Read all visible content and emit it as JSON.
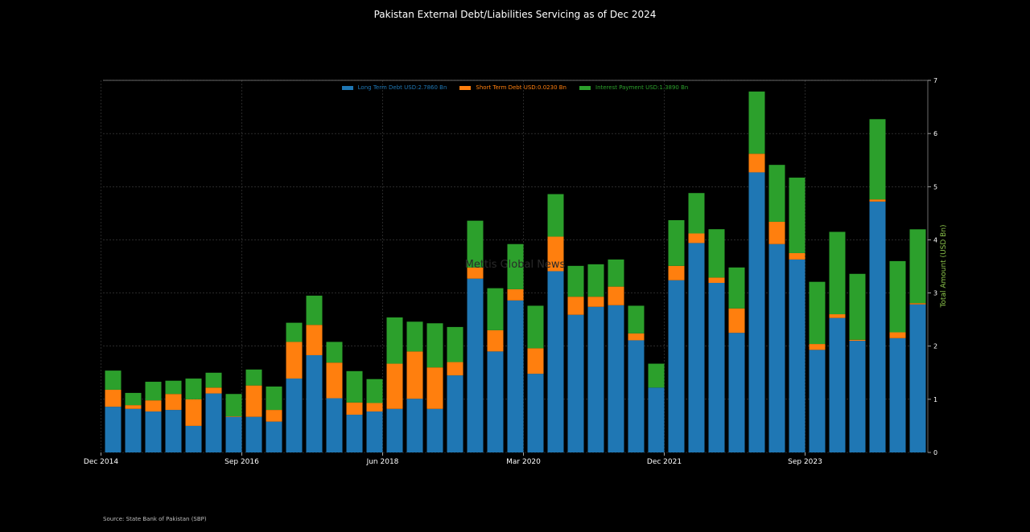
{
  "chart_data": {
    "type": "bar",
    "stacked": true,
    "title": "Pakistan External Debt/Liabilities Servicing as of Dec 2024",
    "ylabel": "Total Amount (USD Bn)",
    "source": "Source: State Bank of Pakistan (SBP)",
    "watermark": "Mettis Global News",
    "ylim": [
      0,
      7
    ],
    "yticks": [
      0,
      1,
      2,
      3,
      4,
      5,
      6,
      7
    ],
    "y_axis_side": "right",
    "grid": true,
    "legend_position": "top-center",
    "x_tick_labels": [
      {
        "label": "Dec 2014",
        "index": 0
      },
      {
        "label": "Sep 2016",
        "index": 7
      },
      {
        "label": "Jun 2018",
        "index": 14
      },
      {
        "label": "Mar 2020",
        "index": 21
      },
      {
        "label": "Dec 2021",
        "index": 28
      },
      {
        "label": "Sep 2023",
        "index": 35
      }
    ],
    "categories": [
      "Dec 2014",
      "Mar 2015",
      "Jun 2015",
      "Sep 2015",
      "Dec 2015",
      "Mar 2016",
      "Jun 2016",
      "Sep 2016",
      "Dec 2016",
      "Mar 2017",
      "Jun 2017",
      "Sep 2017",
      "Dec 2017",
      "Mar 2018",
      "Jun 2018",
      "Sep 2018",
      "Dec 2018",
      "Mar 2019",
      "Jun 2019",
      "Sep 2019",
      "Dec 2019",
      "Mar 2020",
      "Jun 2020",
      "Sep 2020",
      "Dec 2020",
      "Mar 2021",
      "Jun 2021",
      "Sep 2021",
      "Dec 2021",
      "Mar 2022",
      "Jun 2022",
      "Sep 2022",
      "Dec 2022",
      "Mar 2023",
      "Jun 2023",
      "Sep 2023",
      "Dec 2023",
      "Mar 2024",
      "Jun 2024",
      "Sep 2024",
      "Dec 2024"
    ],
    "series": [
      {
        "name": "Long Term Debt USD:2.7860 Bn",
        "color": "#1f77b4",
        "values": [
          0.86,
          0.82,
          0.77,
          0.8,
          0.5,
          1.11,
          0.67,
          0.67,
          0.58,
          1.39,
          1.83,
          1.02,
          0.71,
          0.77,
          0.82,
          1.01,
          0.82,
          1.45,
          3.27,
          1.9,
          2.86,
          1.48,
          3.41,
          2.59,
          2.74,
          2.77,
          2.11,
          1.22,
          3.24,
          3.94,
          3.19,
          2.25,
          5.27,
          3.92,
          3.63,
          1.93,
          2.53,
          2.1,
          4.72,
          2.15,
          2.786
        ]
      },
      {
        "name": "Short Term Debt USD:0.0230 Bn",
        "color": "#ff7f0e",
        "values": [
          0.32,
          0.07,
          0.21,
          0.3,
          0.5,
          0.11,
          0.01,
          0.59,
          0.22,
          0.69,
          0.57,
          0.67,
          0.23,
          0.16,
          0.85,
          0.89,
          0.78,
          0.25,
          0.21,
          0.4,
          0.21,
          0.48,
          0.65,
          0.34,
          0.19,
          0.35,
          0.13,
          0.0,
          0.27,
          0.18,
          0.1,
          0.46,
          0.35,
          0.42,
          0.12,
          0.11,
          0.07,
          0.02,
          0.04,
          0.11,
          0.023
        ]
      },
      {
        "name": "Interest Payment USD:1.3890 Bn",
        "color": "#2ca02c",
        "values": [
          0.36,
          0.23,
          0.35,
          0.25,
          0.39,
          0.28,
          0.42,
          0.3,
          0.44,
          0.36,
          0.55,
          0.39,
          0.59,
          0.45,
          0.87,
          0.56,
          0.83,
          0.66,
          0.88,
          0.79,
          0.85,
          0.8,
          0.8,
          0.58,
          0.61,
          0.51,
          0.52,
          0.45,
          0.86,
          0.76,
          0.91,
          0.77,
          1.17,
          1.07,
          1.42,
          1.17,
          1.55,
          1.24,
          1.51,
          1.34,
          1.389
        ]
      }
    ]
  }
}
